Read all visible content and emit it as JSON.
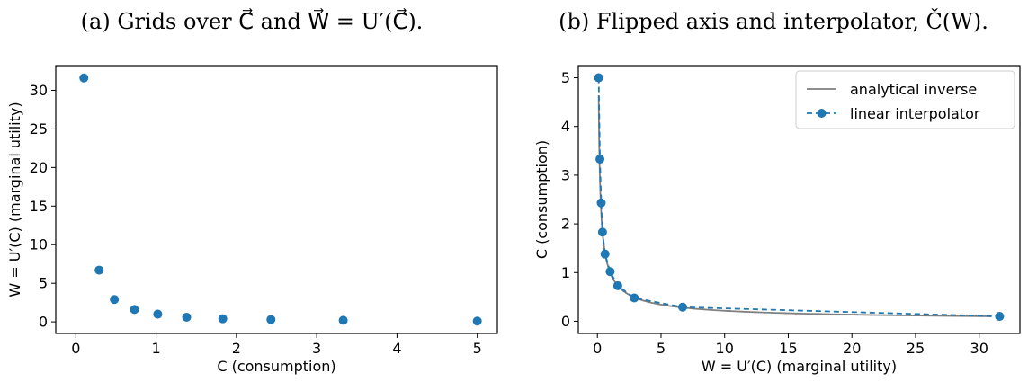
{
  "captions": {
    "a": "(a) Grids over C⃗ and W⃗ = U′(C⃗).",
    "b": "(b) Flipped axis and interpolator, Č(W)."
  },
  "chart_data": [
    {
      "type": "scatter",
      "xlabel": "C (consumption)",
      "ylabel": "W = U′(C) (marginal utility)",
      "xlim": [
        -0.25,
        5.25
      ],
      "ylim": [
        -1.5,
        33.2
      ],
      "xticks": [
        0,
        1,
        2,
        3,
        4,
        5
      ],
      "yticks": [
        0,
        5,
        10,
        15,
        20,
        25,
        30
      ],
      "color": "#1f77b4",
      "grid": false,
      "series": [
        {
          "x": [
            0.1,
            0.29,
            0.48,
            0.73,
            1.02,
            1.38,
            1.83,
            2.43,
            3.33,
            5.0
          ],
          "y": [
            31.6,
            6.7,
            2.9,
            1.6,
            1.0,
            0.6,
            0.4,
            0.3,
            0.2,
            0.1
          ]
        }
      ]
    },
    {
      "type": "line",
      "xlabel": "W = U′(C) (marginal utility)",
      "ylabel": "C (consumption)",
      "xlim": [
        -1.5,
        33.2
      ],
      "ylim": [
        -0.25,
        5.25
      ],
      "xticks": [
        0,
        5,
        10,
        15,
        20,
        25,
        30
      ],
      "yticks": [
        0,
        1,
        2,
        3,
        4,
        5
      ],
      "grid": false,
      "legend_position": "top-right",
      "series": [
        {
          "name": "analytical inverse",
          "style": "solid",
          "color": "#7f7f7f",
          "formula": "C = W^(-1/1.5)"
        },
        {
          "name": "linear interpolator",
          "style": "dashed-markers",
          "color": "#1f77b4",
          "x": [
            0.1,
            0.2,
            0.3,
            0.4,
            0.6,
            1.0,
            1.6,
            2.9,
            6.7,
            31.6
          ],
          "y": [
            5.0,
            3.33,
            2.43,
            1.83,
            1.38,
            1.02,
            0.73,
            0.48,
            0.29,
            0.1
          ]
        }
      ]
    }
  ]
}
